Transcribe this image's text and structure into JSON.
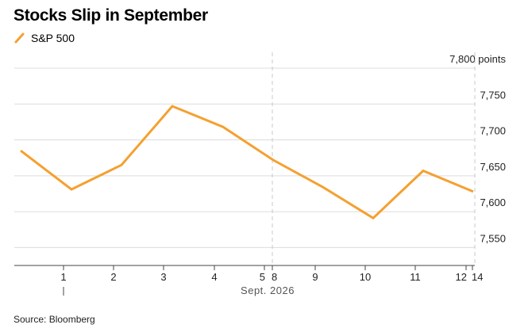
{
  "chart_data": {
    "type": "line",
    "title": "Stocks Slip in September",
    "source": "Source: Bloomberg",
    "series": [
      {
        "name": "S&P 500",
        "color": "#f5a030",
        "points": [
          {
            "x": "Aug 29",
            "y": 7685
          },
          {
            "x": "Sep 1",
            "y": 7631
          },
          {
            "x": "Sep 2",
            "y": 7665
          },
          {
            "x": "Sep 3",
            "y": 7747
          },
          {
            "x": "Sep 4",
            "y": 7718
          },
          {
            "x": "Sep 8",
            "y": 7672
          },
          {
            "x": "Sep 9",
            "y": 7634
          },
          {
            "x": "Sep 10",
            "y": 7591
          },
          {
            "x": "Sep 11",
            "y": 7657
          },
          {
            "x": "Sep 14",
            "y": 7628
          }
        ]
      }
    ],
    "y_axis": {
      "min": 7525,
      "max": 7800,
      "position": "right",
      "ticks": [
        {
          "value": 7800,
          "label": "7,800 points"
        },
        {
          "value": 7750,
          "label": "7,750"
        },
        {
          "value": 7700,
          "label": "7,700"
        },
        {
          "value": 7650,
          "label": "7,650"
        },
        {
          "value": 7600,
          "label": "7,600"
        },
        {
          "value": 7550,
          "label": "7,550"
        }
      ]
    },
    "x_axis": {
      "tick_labels": [
        "1",
        "2",
        "3",
        "4",
        "5",
        "8",
        "9",
        "10",
        "11",
        "12",
        "14"
      ],
      "month_label": "Sept. 2026"
    },
    "grid": true,
    "legend_position": "top-left"
  }
}
